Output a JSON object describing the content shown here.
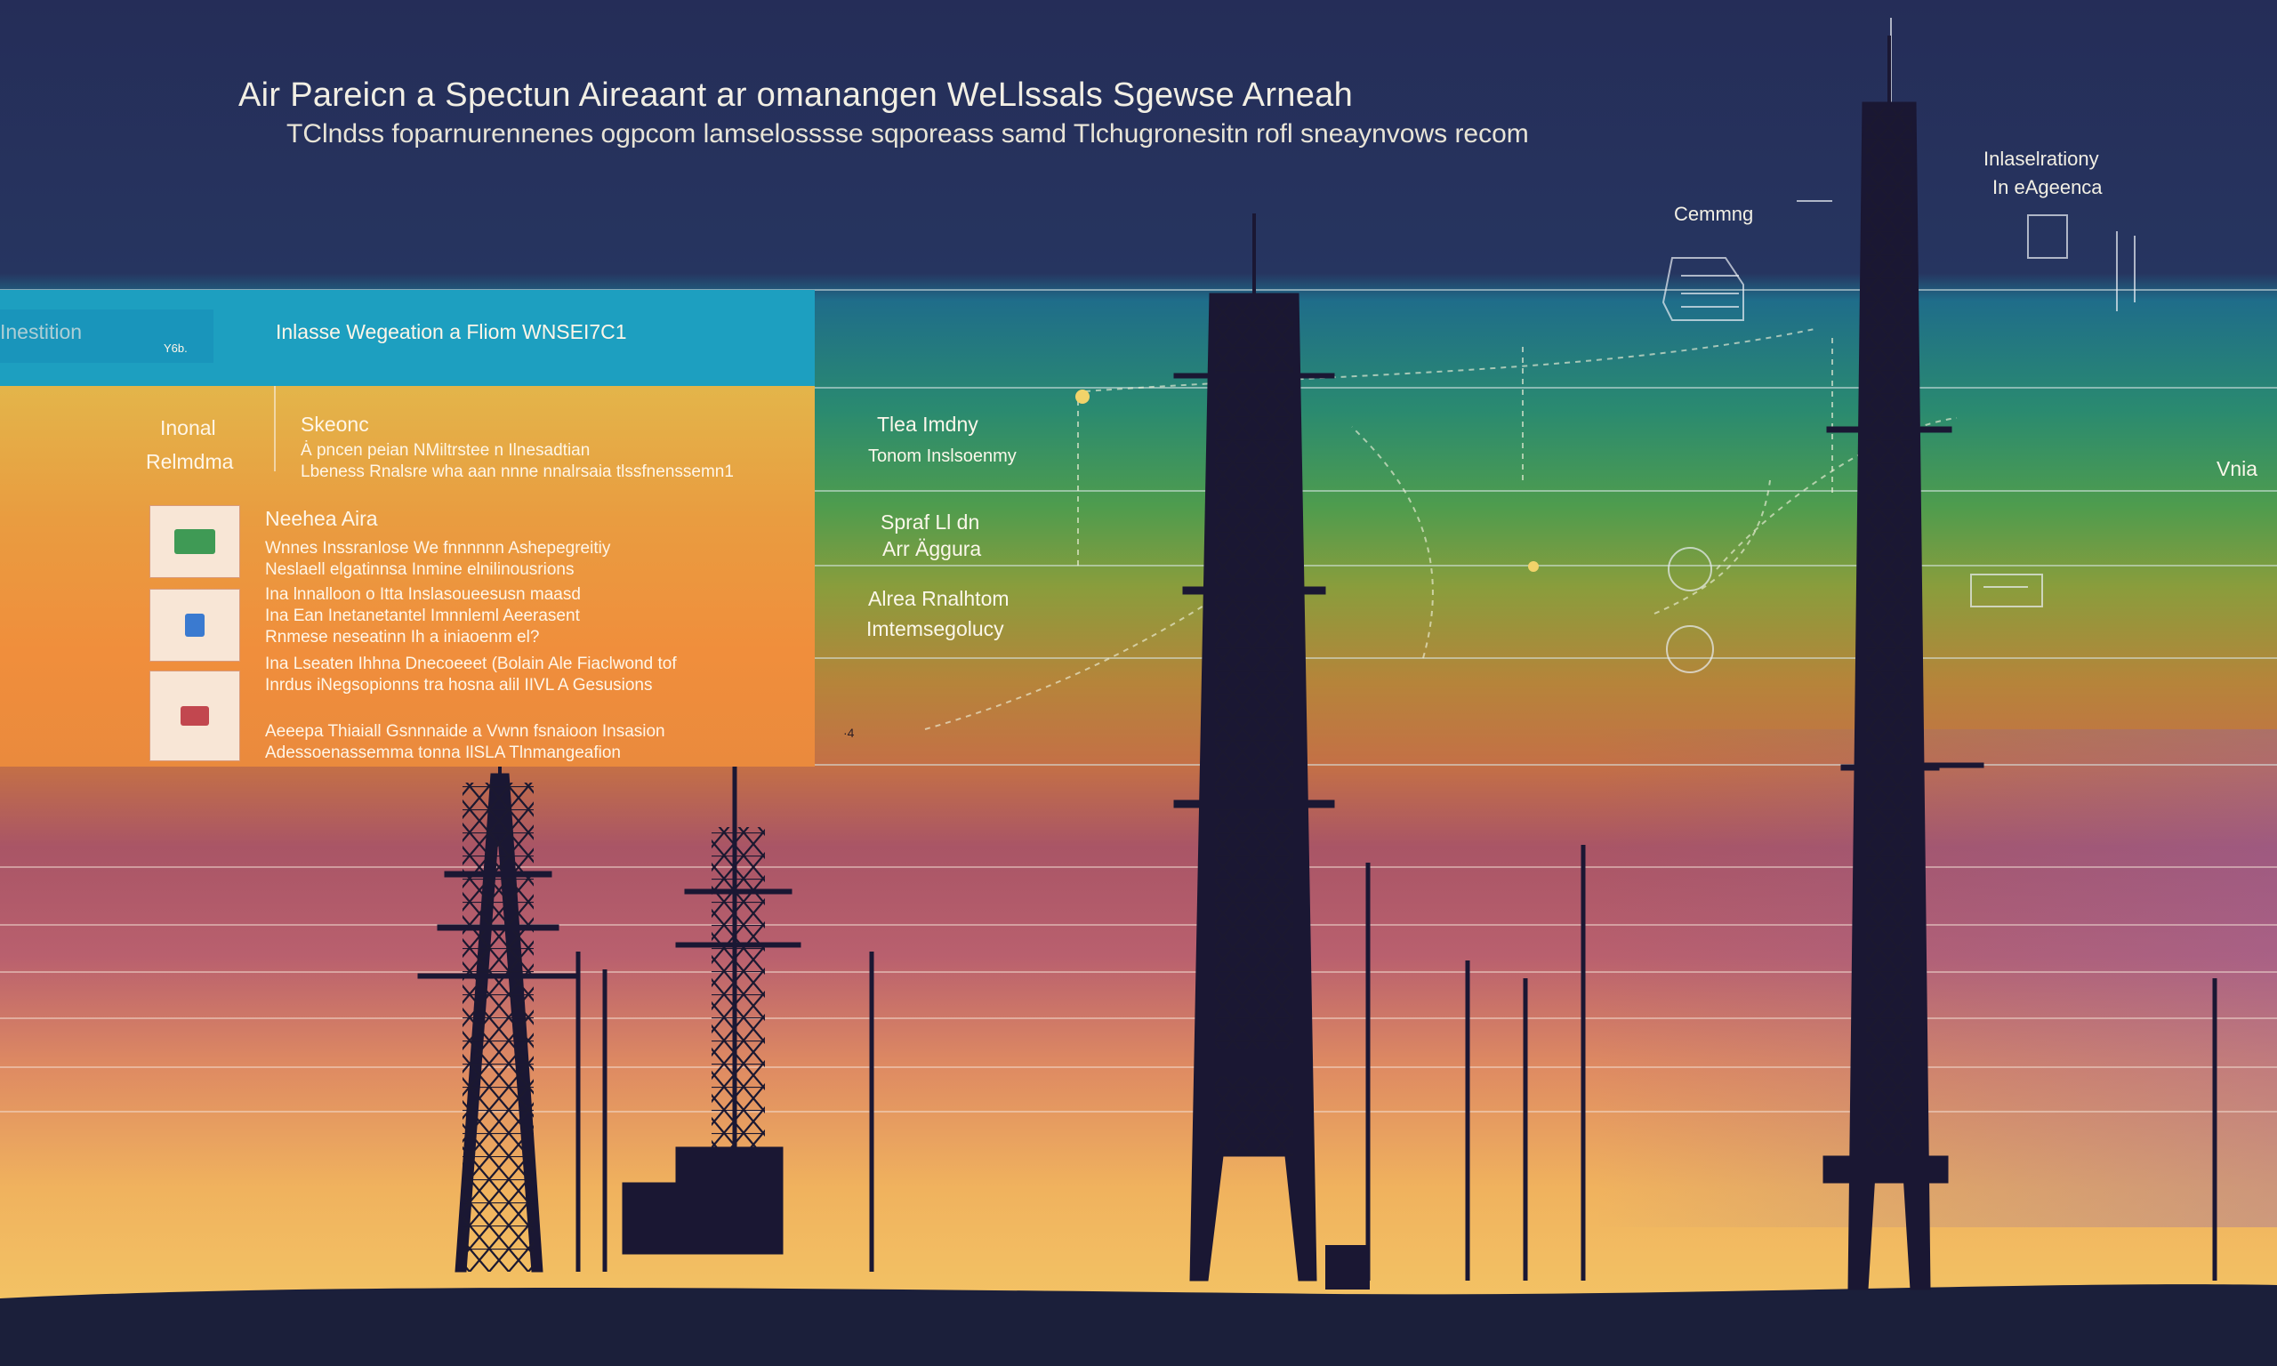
{
  "header": {
    "title": "Air Pareicn a Spectun Aireaant ar omanangen WeLlssals Sgewse Arneah",
    "subtitle": "TClndss foparnurennenes ogpcom lamselosssse sqporeass samd Tlchugronesitn rofl sneaynvows recom"
  },
  "callouts": {
    "top_right_line1": "Inlaselrationy",
    "top_right_line2": "In eAgeenca",
    "comms_label": "Cemmng"
  },
  "left_panel": {
    "top_bar": {
      "label": "Inestition",
      "badge": "Y6b.",
      "heading": "Inlasse Wegeation a Fliom WNSEI7C1"
    },
    "section": {
      "side_label_line1": "Inonal",
      "side_label_line2": "Relmdma",
      "heading": "Skeonc",
      "text_line1": "Ȧ pncen peian NMiltrstee n Ilnesadtian",
      "text_line2": "Lbeness Rnalsre wha aan nnne nnalrsaia tlssfnenssemn1"
    },
    "items": [
      {
        "title": "Neehea Aira",
        "lines": [
          "Wnnes Inssranlose We fnnnnnn Ashepegreitiy",
          "Neslaell elgatinnsa Inmine elnilinousrions"
        ],
        "icon": "signal-card-icon",
        "color": "#3f9a55"
      },
      {
        "lines": [
          "Ina lnnalloon o Itta Inslasoueesusn maasd",
          "Ina Ean Inetanetantel Imnnleml Aeerasent",
          "Rnmese neseatinn Ih a iniaoenm el?"
        ],
        "icon": "document-icon",
        "color": "#3a7ad0"
      },
      {
        "lines": [
          "Ina Lseaten Ihhna Dnecoeeet (Bolain Ale Fiaclwond tof",
          "Inrdus iNegsopionns tra hosna alil IIVL A Gesusions"
        ],
        "icon": "chart-card-icon",
        "color": "#c2474f"
      },
      {
        "lines": [
          "Aeeepa Thiaiall Gsnnnaide a Vwnn fsnaioon Insasion",
          "Adessoenassemma tonna IlSLA Tlnmangeafion"
        ]
      }
    ]
  },
  "bands": [
    {
      "label_line1": "Tlea Imdny",
      "label_line2": "Tonom Inslsoenmy"
    },
    {
      "label_line1": "Spraf Ll dn",
      "label_line2": "Arr Äggura"
    },
    {
      "label_line1": "Alrea Rnalhtom",
      "label_line2": "Imtemsegolucy"
    }
  ],
  "right_band_label": "Vnia",
  "small_mark": "·4",
  "colors": {
    "sky_top": "#25305a",
    "band_teal": "#1d7f8a",
    "band_green": "#2f9a62",
    "band_olive": "#8aa23a",
    "band_orange": "#cf7a3a",
    "band_rose": "#a65a6e",
    "horizon_gold": "#f1b75a",
    "ground": "#1b1f3a",
    "panel_cyan": "#1d9fc0",
    "panel_orange": "#ea8a3d"
  }
}
